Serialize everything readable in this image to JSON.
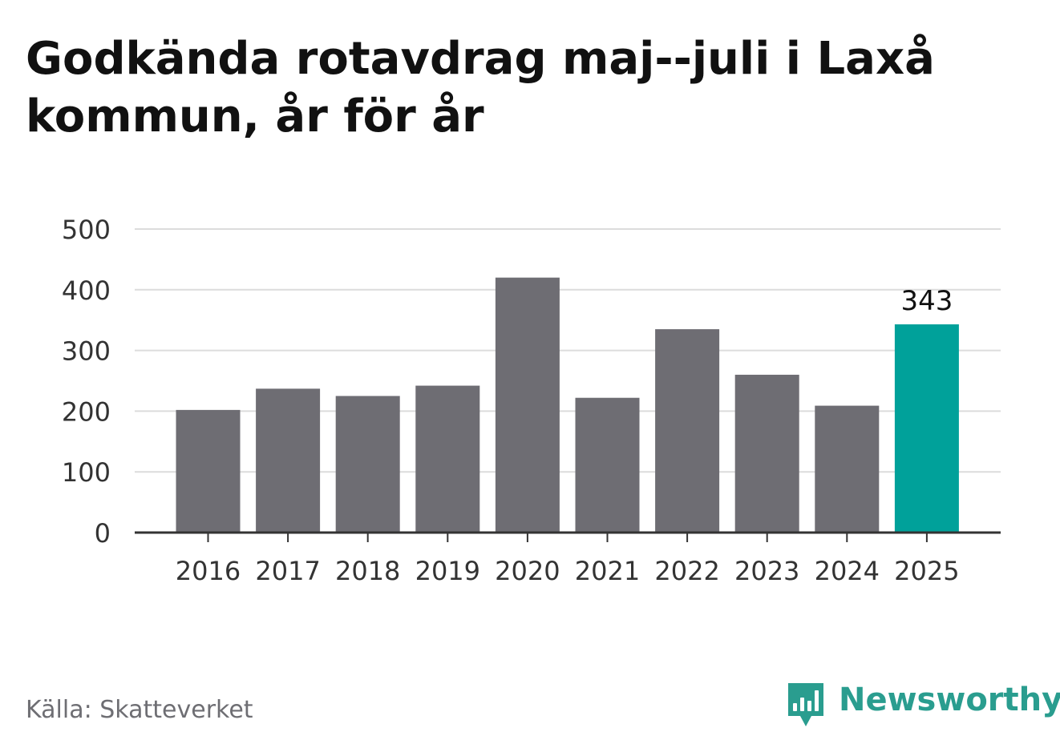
{
  "title": "Godkända rotavdrag maj--juli i Laxå kommun, år för år",
  "source": "Källa: Skatteverket",
  "brand": {
    "name": "Newsworthy",
    "logo_icon": "bar-chart-speech-bubble-icon"
  },
  "colors": {
    "bar": "#6e6d73",
    "highlight": "#00a19a",
    "grid": "#dcdcdc",
    "axis": "#333333",
    "brand": "#2a9d8f"
  },
  "chart_data": {
    "type": "bar",
    "title": "Godkända rotavdrag maj--juli i Laxå kommun, år för år",
    "xlabel": "",
    "ylabel": "",
    "categories": [
      "2016",
      "2017",
      "2018",
      "2019",
      "2020",
      "2021",
      "2022",
      "2023",
      "2024",
      "2025"
    ],
    "values": [
      202,
      237,
      225,
      242,
      420,
      222,
      335,
      260,
      209,
      343
    ],
    "ylim": [
      0,
      500
    ],
    "yticks": [
      "0",
      "100",
      "200",
      "300",
      "400",
      "500"
    ],
    "highlight_index": 9,
    "data_labels": [
      {
        "index": 9,
        "text": "343"
      }
    ],
    "grid": true,
    "legend": "none"
  }
}
